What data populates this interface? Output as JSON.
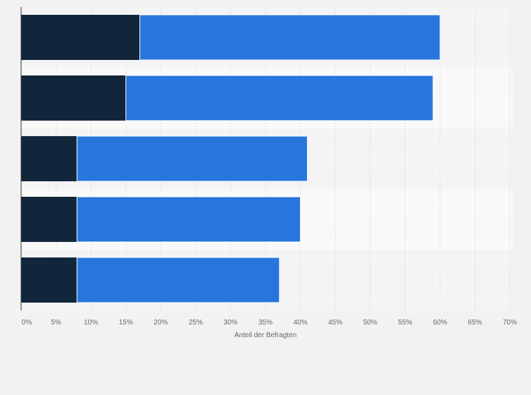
{
  "chart_data": {
    "type": "bar",
    "orientation": "horizontal",
    "stacked": true,
    "categories": [
      "",
      "",
      "",
      "",
      ""
    ],
    "series": [
      {
        "name": "",
        "color": "#12263b",
        "values": [
          17,
          15,
          8,
          8,
          8
        ]
      },
      {
        "name": "",
        "color": "#2876dd",
        "values": [
          43,
          44,
          33,
          32,
          29
        ]
      }
    ],
    "xlabel": "Anteil der Befragten",
    "ylabel": "",
    "xlim": [
      0,
      70
    ],
    "xticks": [
      "0%",
      "5%",
      "10%",
      "15%",
      "20%",
      "25%",
      "30%",
      "35%",
      "40%",
      "45%",
      "50%",
      "55%",
      "60%",
      "65%",
      "70%"
    ],
    "grid": true,
    "legend": "none"
  }
}
